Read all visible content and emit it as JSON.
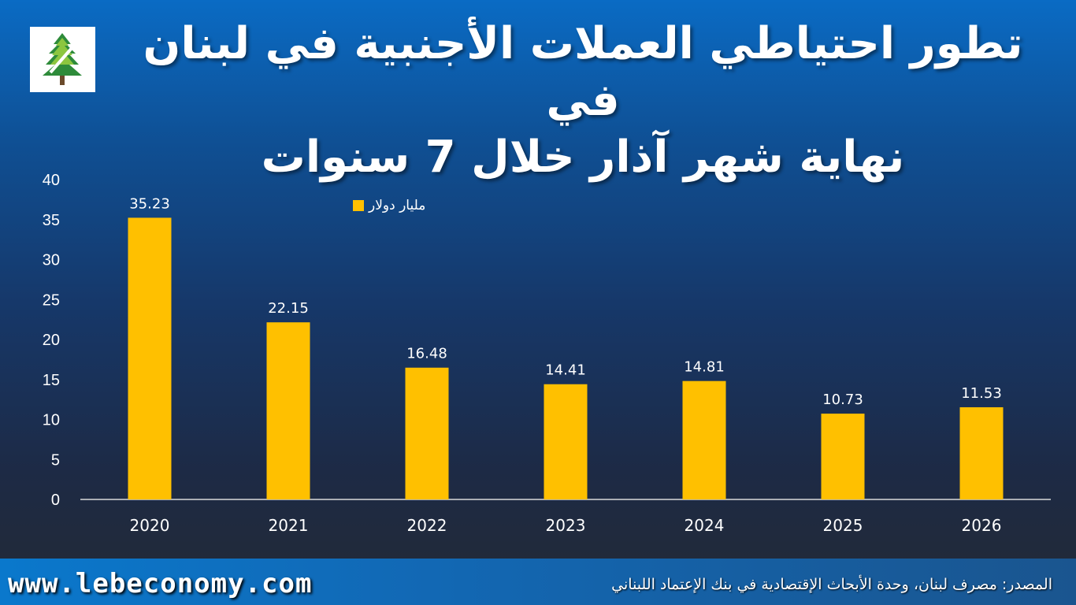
{
  "title": {
    "line1": "تطور احتياطي العملات الأجنبية في لبنان في",
    "line2": "نهاية شهر آذار خلال 7 سنوات"
  },
  "logo": {
    "icon": "cedar-tree-icon"
  },
  "legend": {
    "label": "مليار دولار",
    "color": "#ffc000"
  },
  "footer": {
    "url": "www.lebeconomy.com",
    "source": "المصدر: مصرف لبنان، وحدة الأبحاث الإقتصادية في بنك الإعتماد اللبناني"
  },
  "chart_data": {
    "type": "bar",
    "categories": [
      "2020",
      "2021",
      "2022",
      "2023",
      "2024",
      "2025",
      "2026"
    ],
    "values": [
      35.23,
      22.15,
      16.48,
      14.41,
      14.81,
      10.73,
      11.53
    ],
    "data_labels": [
      "35.23",
      "22.15",
      "16.48",
      "14.41",
      "14.81",
      "10.73",
      "11.53"
    ],
    "y_ticks": [
      "0",
      "5",
      "10",
      "15",
      "20",
      "25",
      "30",
      "35",
      "40"
    ],
    "ylim": [
      0,
      40
    ],
    "grid": false,
    "legend_position": "top",
    "bar_color": "#ffc000"
  }
}
